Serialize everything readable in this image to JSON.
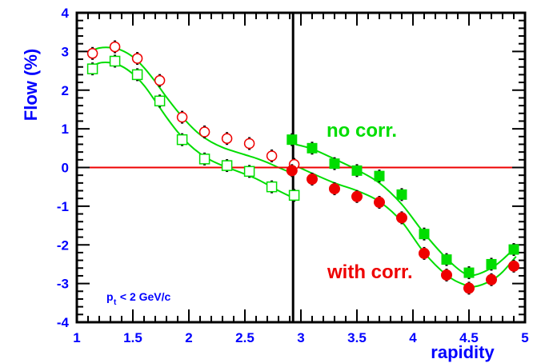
{
  "chart_data": {
    "type": "scatter",
    "xlabel": "rapidity",
    "ylabel": "Flow (%)",
    "xlim": [
      1,
      5
    ],
    "ylim": [
      -4,
      4
    ],
    "x_ticks": [
      "1",
      "1.5",
      "2",
      "2.5",
      "3",
      "3.5",
      "4",
      "4.5",
      "5"
    ],
    "y_ticks": [
      "4",
      "3",
      "2",
      "1",
      "0",
      "-1",
      "-2",
      "-3",
      "-4"
    ],
    "annotations": {
      "no_corr": "no corr.",
      "with_corr": "with corr.",
      "cut_p": "p",
      "cut_sub": "t",
      "cut_rest": " < 2 GeV/c"
    },
    "vertical_line_x": 2.93,
    "horizontal_line_y": 0,
    "colors": {
      "green": "#00dd00",
      "red": "#ee0000",
      "blue": "#0000ff",
      "black": "#000000"
    },
    "series": [
      {
        "name": "no corr.",
        "marker": "square-open",
        "color": "#00dd00",
        "points": [
          [
            1.14,
            2.55
          ],
          [
            1.34,
            2.75
          ],
          [
            1.54,
            2.4
          ],
          [
            1.74,
            1.72
          ],
          [
            1.94,
            0.72
          ],
          [
            2.14,
            0.22
          ],
          [
            2.34,
            0.05
          ],
          [
            2.54,
            -0.1
          ],
          [
            2.74,
            -0.5
          ],
          [
            2.94,
            -0.72
          ]
        ]
      },
      {
        "name": "no corr.",
        "marker": "square-filled",
        "color": "#00dd00",
        "points": [
          [
            2.92,
            0.72
          ],
          [
            3.1,
            0.5
          ],
          [
            3.3,
            0.1
          ],
          [
            3.5,
            -0.08
          ],
          [
            3.7,
            -0.22
          ],
          [
            3.9,
            -0.7
          ],
          [
            4.1,
            -1.72
          ],
          [
            4.3,
            -2.38
          ],
          [
            4.5,
            -2.72
          ],
          [
            4.7,
            -2.5
          ],
          [
            4.9,
            -2.12
          ]
        ]
      },
      {
        "name": "with corr.",
        "marker": "circle-open",
        "color": "#ee0000",
        "points": [
          [
            1.14,
            2.95
          ],
          [
            1.34,
            3.12
          ],
          [
            1.54,
            2.82
          ],
          [
            1.74,
            2.25
          ],
          [
            1.94,
            1.3
          ],
          [
            2.14,
            0.92
          ],
          [
            2.34,
            0.75
          ],
          [
            2.54,
            0.62
          ],
          [
            2.74,
            0.3
          ],
          [
            2.94,
            0.08
          ]
        ]
      },
      {
        "name": "with corr.",
        "marker": "circle-filled",
        "color": "#ee0000",
        "points": [
          [
            2.92,
            -0.08
          ],
          [
            3.1,
            -0.3
          ],
          [
            3.3,
            -0.55
          ],
          [
            3.5,
            -0.75
          ],
          [
            3.7,
            -0.9
          ],
          [
            3.9,
            -1.3
          ],
          [
            4.1,
            -2.22
          ],
          [
            4.3,
            -2.78
          ],
          [
            4.5,
            -3.12
          ],
          [
            4.7,
            -2.9
          ],
          [
            4.9,
            -2.55
          ]
        ]
      }
    ],
    "fit_curves": [
      {
        "name": "upper",
        "color": "#00dd00",
        "points": [
          [
            1.1,
            2.98
          ],
          [
            1.2,
            3.09
          ],
          [
            1.3,
            3.1
          ],
          [
            1.4,
            3.03
          ],
          [
            1.5,
            2.86
          ],
          [
            1.6,
            2.58
          ],
          [
            1.7,
            2.22
          ],
          [
            1.8,
            1.82
          ],
          [
            1.9,
            1.45
          ],
          [
            2.0,
            1.12
          ],
          [
            2.1,
            0.85
          ],
          [
            2.2,
            0.66
          ],
          [
            2.3,
            0.52
          ],
          [
            2.4,
            0.42
          ],
          [
            2.5,
            0.33
          ],
          [
            2.6,
            0.24
          ],
          [
            2.7,
            0.13
          ],
          [
            2.8,
            0.0
          ],
          [
            2.9,
            -0.12
          ],
          [
            2.95,
            -0.18
          ]
        ]
      },
      {
        "name": "lower",
        "color": "#00dd00",
        "points": [
          [
            1.1,
            2.55
          ],
          [
            1.2,
            2.7
          ],
          [
            1.3,
            2.71
          ],
          [
            1.4,
            2.62
          ],
          [
            1.5,
            2.42
          ],
          [
            1.6,
            2.12
          ],
          [
            1.7,
            1.72
          ],
          [
            1.8,
            1.3
          ],
          [
            1.9,
            0.92
          ],
          [
            2.0,
            0.6
          ],
          [
            2.1,
            0.36
          ],
          [
            2.2,
            0.18
          ],
          [
            2.3,
            0.05
          ],
          [
            2.4,
            -0.06
          ],
          [
            2.5,
            -0.17
          ],
          [
            2.6,
            -0.29
          ],
          [
            2.7,
            -0.44
          ],
          [
            2.8,
            -0.6
          ],
          [
            2.9,
            -0.74
          ],
          [
            2.95,
            -0.8
          ]
        ]
      },
      {
        "name": "upper-right",
        "color": "#00dd00",
        "points": [
          [
            2.95,
            0.6
          ],
          [
            3.1,
            0.48
          ],
          [
            3.3,
            0.22
          ],
          [
            3.5,
            -0.06
          ],
          [
            3.7,
            -0.4
          ],
          [
            3.9,
            -0.95
          ],
          [
            4.1,
            -1.7
          ],
          [
            4.3,
            -2.35
          ],
          [
            4.45,
            -2.72
          ],
          [
            4.55,
            -2.78
          ],
          [
            4.7,
            -2.6
          ],
          [
            4.8,
            -2.38
          ],
          [
            4.92,
            -2.05
          ]
        ]
      },
      {
        "name": "lower-right",
        "color": "#00dd00",
        "points": [
          [
            2.95,
            0.05
          ],
          [
            3.1,
            -0.15
          ],
          [
            3.3,
            -0.4
          ],
          [
            3.5,
            -0.6
          ],
          [
            3.7,
            -0.88
          ],
          [
            3.9,
            -1.4
          ],
          [
            4.1,
            -2.2
          ],
          [
            4.3,
            -2.78
          ],
          [
            4.45,
            -3.02
          ],
          [
            4.55,
            -3.08
          ],
          [
            4.7,
            -2.92
          ],
          [
            4.8,
            -2.7
          ],
          [
            4.92,
            -2.3
          ]
        ]
      }
    ]
  }
}
